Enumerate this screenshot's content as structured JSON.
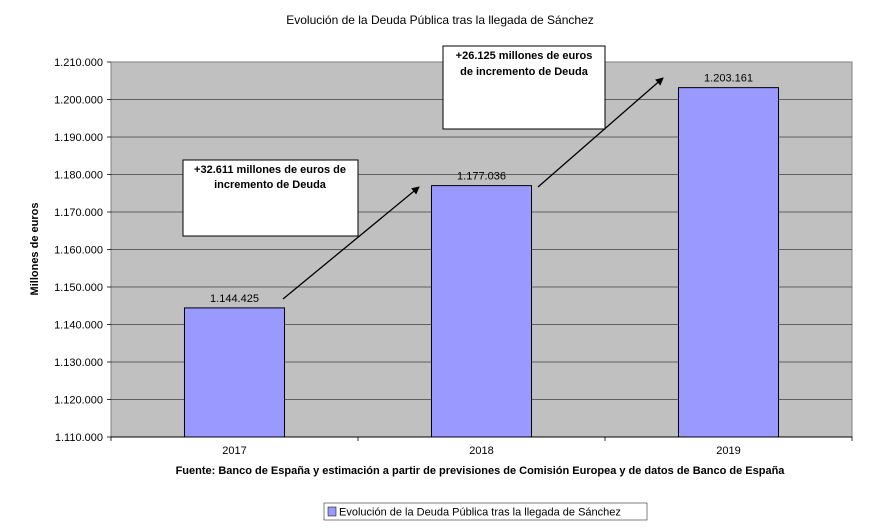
{
  "chart_data": {
    "type": "bar",
    "title": "Evolución de la Deuda Pública tras la llegada de Sánchez",
    "categories": [
      "2017",
      "2018",
      "2019"
    ],
    "series": [
      {
        "name": "Evolución de la Deuda Pública tras la llegada de Sánchez",
        "values": [
          1144425,
          1177036,
          1203161
        ],
        "labels": [
          "1.144.425",
          "1.177.036",
          "1.203.161"
        ],
        "color": "#9999ff"
      }
    ],
    "xlabel": "",
    "ylabel": "Millones de euros",
    "ylim": [
      1110000,
      1210000
    ],
    "yticks": [
      1110000,
      1120000,
      1130000,
      1140000,
      1150000,
      1160000,
      1170000,
      1180000,
      1190000,
      1200000,
      1210000
    ],
    "ytick_labels": [
      "1.110.000",
      "1.120.000",
      "1.130.000",
      "1.140.000",
      "1.150.000",
      "1.160.000",
      "1.170.000",
      "1.180.000",
      "1.190.000",
      "1.200.000",
      "1.210.000"
    ],
    "grid": true,
    "plot_background": "#c0c0c0",
    "source": "Fuente: Banco de España y estimación a partir de previsiones de Comisión Europea y de datos de Banco de España",
    "legend_position": "bottom-center",
    "annotations": [
      {
        "lines": [
          "+32.611 millones de euros de",
          "incremento de Deuda"
        ]
      },
      {
        "lines": [
          "+26.125 millones de euros",
          "de incremento de Deuda"
        ]
      }
    ]
  }
}
